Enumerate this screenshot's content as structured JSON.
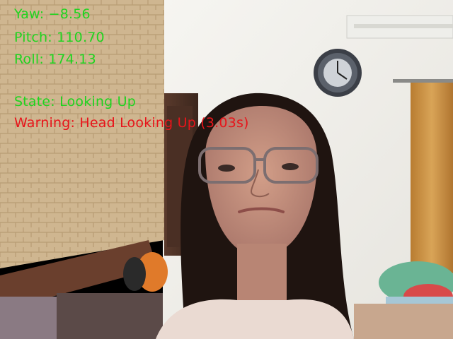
{
  "overlay": {
    "yaw_label": "Yaw:",
    "yaw_value": "−8.56",
    "pitch_label": "Pitch:",
    "pitch_value": "110.70",
    "roll_label": "Roll:",
    "roll_value": "174.13",
    "state_label": "State:",
    "state_value": "Looking Up",
    "warning_label": "Warning:",
    "warning_value": "Head Looking Up (3.03s)"
  },
  "colors": {
    "info_text": "#1fd41f",
    "warning_text": "#e8141a",
    "wall_left": "#cdb48f",
    "wall_right": "#f1f0ec",
    "curtain": "#c98f3e",
    "hair": "#1f1410",
    "skin": "#c3907d"
  },
  "icons": {
    "camera_feed": "webcam-frame-icon",
    "clock": "wall-clock-icon"
  }
}
